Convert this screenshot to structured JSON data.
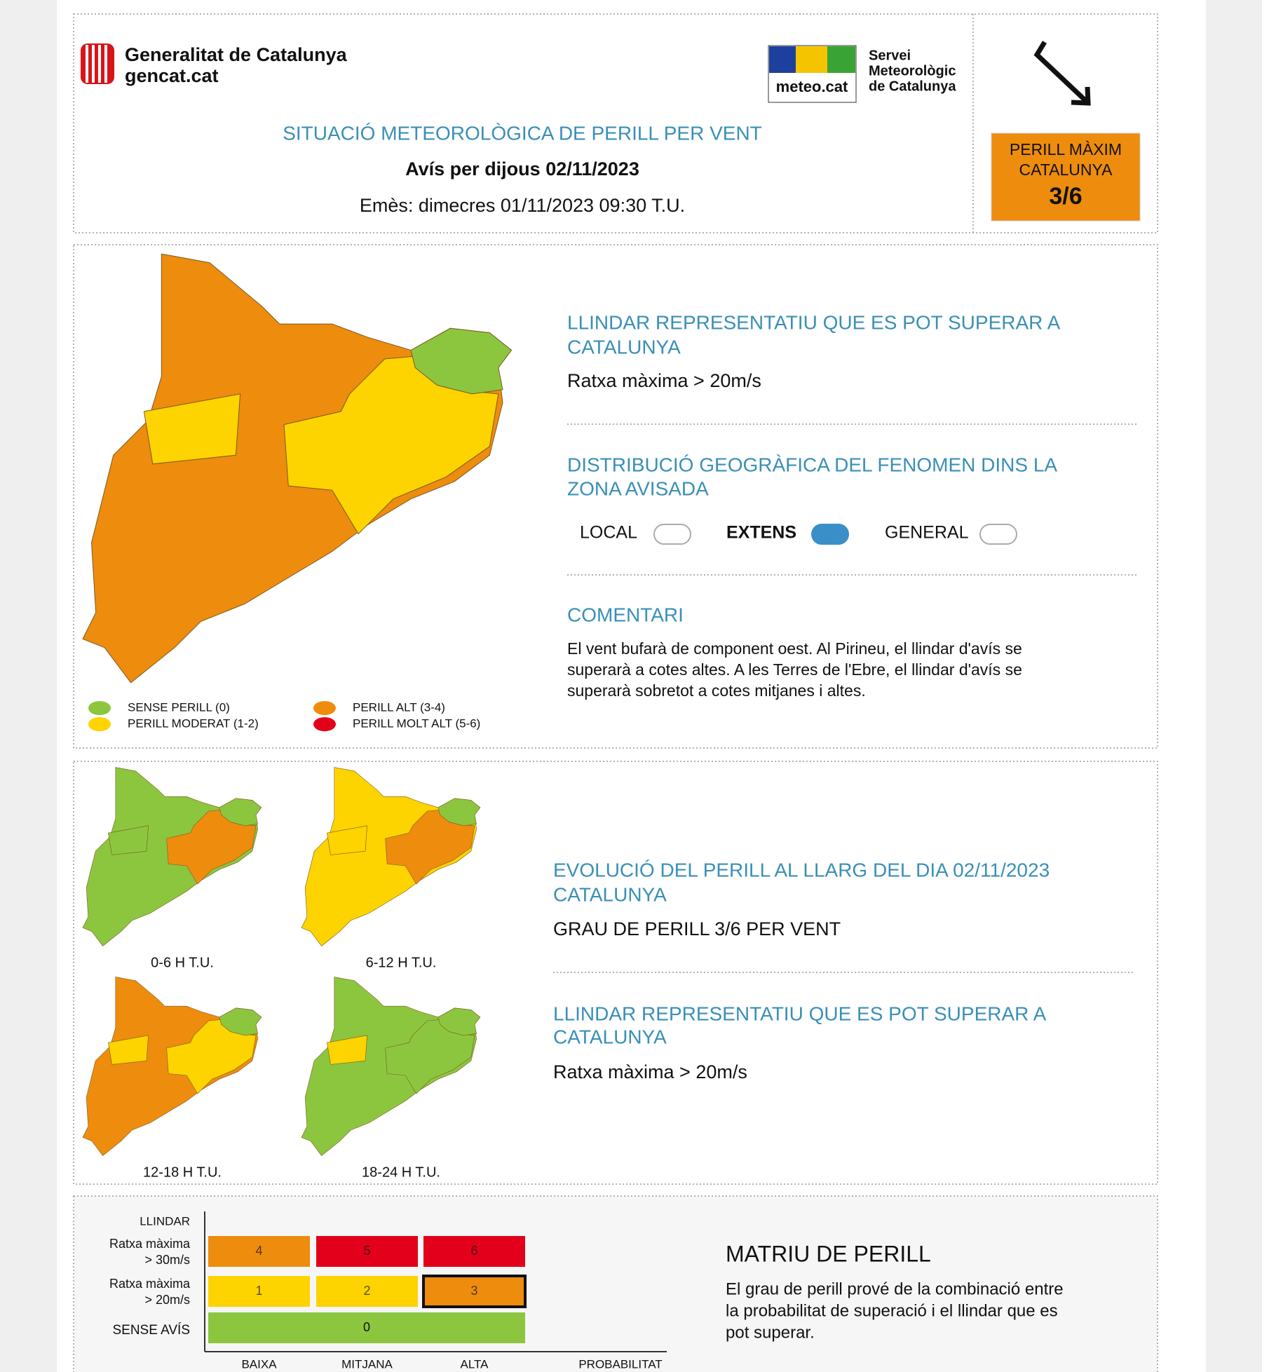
{
  "header": {
    "org_name": "Generalitat de Catalunya",
    "org_url": "gencat.cat",
    "logo_text": "meteo.cat",
    "service_lines": [
      "Servei",
      "Meteorològic",
      "de Catalunya"
    ],
    "title": "SITUACIÓ METEOROLÒGICA DE PERILL PER VENT",
    "subtitle": "Avís per dijous 02/11/2023",
    "issued": "Emès: dimecres 01/11/2023 09:30 T.U.",
    "max_danger": {
      "lines": [
        "PERILL MÀXIM",
        "CATALUNYA"
      ],
      "value": "3/6"
    }
  },
  "summary": {
    "threshold_title": [
      "LLINDAR REPRESENTATIU QUE ES POT SUPERAR A",
      "CATALUNYA"
    ],
    "threshold_value": "Ratxa màxima > 20m/s",
    "distribution_title": [
      "DISTRIBUCIÓ GEOGRÀFICA DEL FENOMEN DINS LA",
      "ZONA AVISADA"
    ],
    "options": [
      {
        "label": "LOCAL",
        "active": false
      },
      {
        "label": "EXTENS",
        "active": true
      },
      {
        "label": "GENERAL",
        "active": false
      }
    ],
    "comment_title": "COMENTARI",
    "comment_lines": [
      "El vent bufarà de component oest. Al Pirineu, el llindar d'avís se",
      "superarà a cotes altes. A les Terres de l'Ebre, el llindar d'avís se",
      "superarà sobretot a cotes mitjanes i altes."
    ],
    "legend": [
      {
        "label": "SENSE PERILL (0)",
        "color": "#8cc63f"
      },
      {
        "label": "PERILL MODERAT (1-2)",
        "color": "#fdd300"
      },
      {
        "label": "PERILL ALT (3-4)",
        "color": "#ee8c0e"
      },
      {
        "label": "PERILL MOLT ALT (5-6)",
        "color": "#e3001b"
      }
    ]
  },
  "evolution": {
    "title": [
      "EVOLUCIÓ DEL PERILL AL LLARG DEL DIA 02/11/2023",
      "CATALUNYA"
    ],
    "degree": "GRAU DE PERILL 3/6 PER VENT",
    "threshold_title": [
      "LLINDAR REPRESENTATIU QUE ES POT SUPERAR A",
      "CATALUNYA"
    ],
    "threshold_value": "Ratxa màxima > 20m/s",
    "periods": [
      "0-6 H T.U.",
      "6-12 H T.U.",
      "12-18 H T.U.",
      "18-24 H T.U."
    ]
  },
  "matrix": {
    "y_label": "LLINDAR",
    "rows": [
      {
        "label": [
          "Ratxa màxima",
          "> 30m/s"
        ],
        "cells": [
          {
            "value": 4,
            "color": "#ee8c0e"
          },
          {
            "value": 5,
            "color": "#e3001b"
          },
          {
            "value": 6,
            "color": "#e3001b"
          }
        ]
      },
      {
        "label": [
          "Ratxa màxima",
          "> 20m/s"
        ],
        "cells": [
          {
            "value": 1,
            "color": "#fdd300"
          },
          {
            "value": 2,
            "color": "#fdd300"
          },
          {
            "value": 3,
            "color": "#ee8c0e",
            "current": true
          }
        ]
      }
    ],
    "none": {
      "label": "SENSE AVÍS",
      "value": 0,
      "color": "#8cc63f"
    },
    "columns": [
      "BAIXA",
      "MITJANA",
      "ALTA"
    ],
    "x_label": "PROBABILITAT",
    "title": "MATRIU DE PERILL",
    "text_lines": [
      "El grau de perill prové de la combinació entre",
      "la probabilitat de superació i el llindar que es",
      "pot superar."
    ]
  }
}
